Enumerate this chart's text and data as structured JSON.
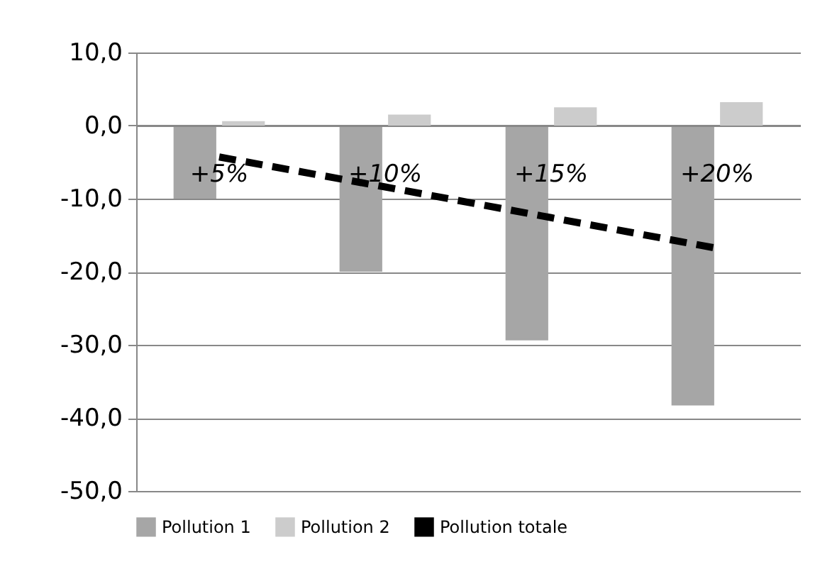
{
  "chart_data": {
    "type": "bar",
    "categories": [
      "+5%",
      "+10%",
      "+15%",
      "+20%"
    ],
    "series": [
      {
        "name": "Pollution 1",
        "color": "#a6a6a6",
        "values": [
          -10,
          -20,
          -29.4,
          -38.3
        ]
      },
      {
        "name": "Pollution 2",
        "color": "#cccccc",
        "values": [
          0.6,
          1.5,
          2.5,
          3.2
        ]
      },
      {
        "name": "Pollution totale",
        "type": "line",
        "color": "#000000",
        "line_style": "dashed",
        "values": [
          -4.3,
          -8.4,
          -12.6,
          -16.8
        ]
      }
    ],
    "ylim": [
      -50,
      10
    ],
    "yticks": [
      {
        "value": -50,
        "label": "-50,0"
      },
      {
        "value": -40,
        "label": "-40,0"
      },
      {
        "value": -30,
        "label": "-30,0"
      },
      {
        "value": -20,
        "label": "-20,0"
      },
      {
        "value": -10,
        "label": "-10,0"
      },
      {
        "value": 0,
        "label": "0,0"
      },
      {
        "value": 10,
        "label": "10,0"
      }
    ],
    "grid": "y",
    "legend": "bottom"
  }
}
